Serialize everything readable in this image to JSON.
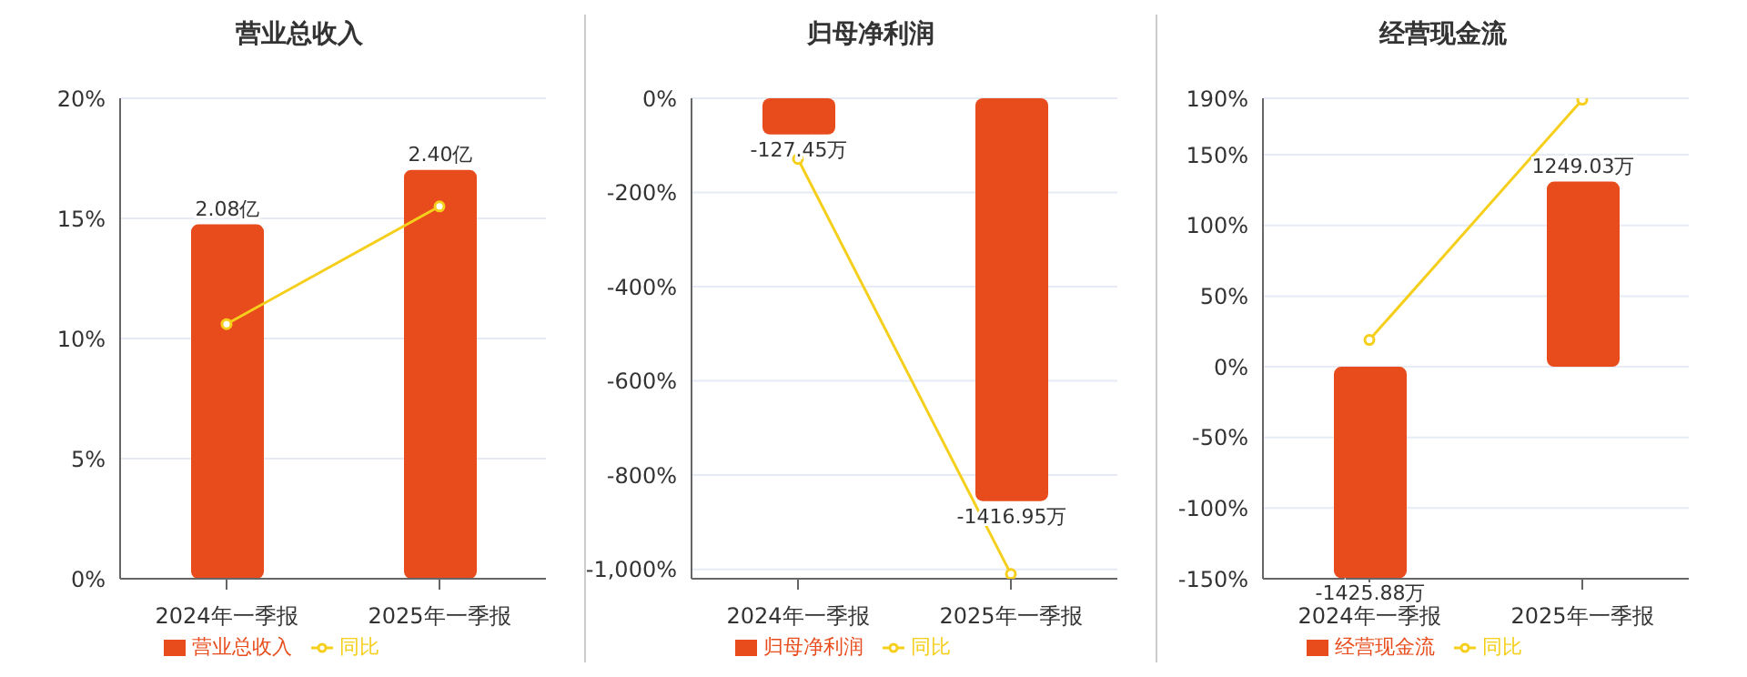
{
  "chart_data": [
    {
      "type": "bar",
      "title": "营业总收入",
      "categories": [
        "2024年一季报",
        "2025年一季报"
      ],
      "legend": "bottom",
      "grid": "y",
      "ylim": [
        0,
        20
      ],
      "yticks": [
        {
          "value": 0,
          "label": "0%"
        },
        {
          "value": 5,
          "label": "5%"
        },
        {
          "value": 10,
          "label": "10%"
        },
        {
          "value": 15,
          "label": "15%"
        },
        {
          "value": 20,
          "label": "20%"
        }
      ],
      "y2lim": [
        0,
        2.82
      ],
      "series": [
        {
          "name": "营业总收入",
          "axis": "y2",
          "color": "#e84c1c",
          "values": [
            2.08,
            2.4
          ],
          "value_labels": [
            "2.08亿",
            "2.40亿"
          ]
        },
        {
          "name": "同比",
          "type": "line",
          "color": "#f5cf1b",
          "marker": "circle",
          "values": [
            10.6,
            15.5
          ]
        }
      ]
    },
    {
      "type": "bar",
      "title": "归母净利润",
      "categories": [
        "2024年一季报",
        "2025年一季报"
      ],
      "legend": "bottom",
      "grid": "y",
      "ylim": [
        -1020,
        0
      ],
      "yticks": [
        {
          "value": -1000,
          "label": "-1,000%"
        },
        {
          "value": -800,
          "label": "-800%"
        },
        {
          "value": -600,
          "label": "-600%"
        },
        {
          "value": -400,
          "label": "-400%"
        },
        {
          "value": -200,
          "label": "-200%"
        },
        {
          "value": 0,
          "label": "0%"
        }
      ],
      "y2lim": [
        -1690,
        0
      ],
      "series": [
        {
          "name": "归母净利润",
          "axis": "y2",
          "color": "#e84c1c",
          "values": [
            -127.45,
            -1416.95
          ],
          "value_labels": [
            "-127.45万",
            "-1416.95万"
          ]
        },
        {
          "name": "同比",
          "type": "line",
          "color": "#f5cf1b",
          "marker": "circle",
          "values": [
            -129,
            -1010
          ]
        }
      ]
    },
    {
      "type": "bar",
      "title": "经营现金流",
      "categories": [
        "2024年一季报",
        "2025年一季报"
      ],
      "legend": "bottom",
      "grid": "y",
      "ylim": [
        -150,
        190
      ],
      "yticks": [
        {
          "value": -150,
          "label": "-150%"
        },
        {
          "value": -100,
          "label": "-100%"
        },
        {
          "value": -50,
          "label": "-50%"
        },
        {
          "value": 0,
          "label": "0%"
        },
        {
          "value": 50,
          "label": "50%"
        },
        {
          "value": 100,
          "label": "100%"
        },
        {
          "value": 150,
          "label": "150%"
        },
        {
          "value": 190,
          "label": "190%"
        }
      ],
      "y2lim": [
        -1430,
        1811
      ],
      "series": [
        {
          "name": "经营现金流",
          "axis": "y2",
          "color": "#e84c1c",
          "values": [
            -1425.88,
            1249.03
          ],
          "value_labels": [
            "-1425.88万",
            "1249.03万"
          ]
        },
        {
          "name": "同比",
          "type": "line",
          "color": "#f5cf1b",
          "marker": "circle",
          "values": [
            19,
            189
          ]
        }
      ]
    }
  ]
}
